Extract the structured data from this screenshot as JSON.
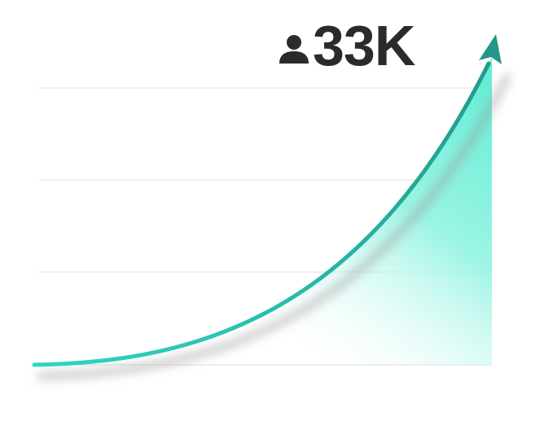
{
  "badge": {
    "label": "33K"
  }
}
